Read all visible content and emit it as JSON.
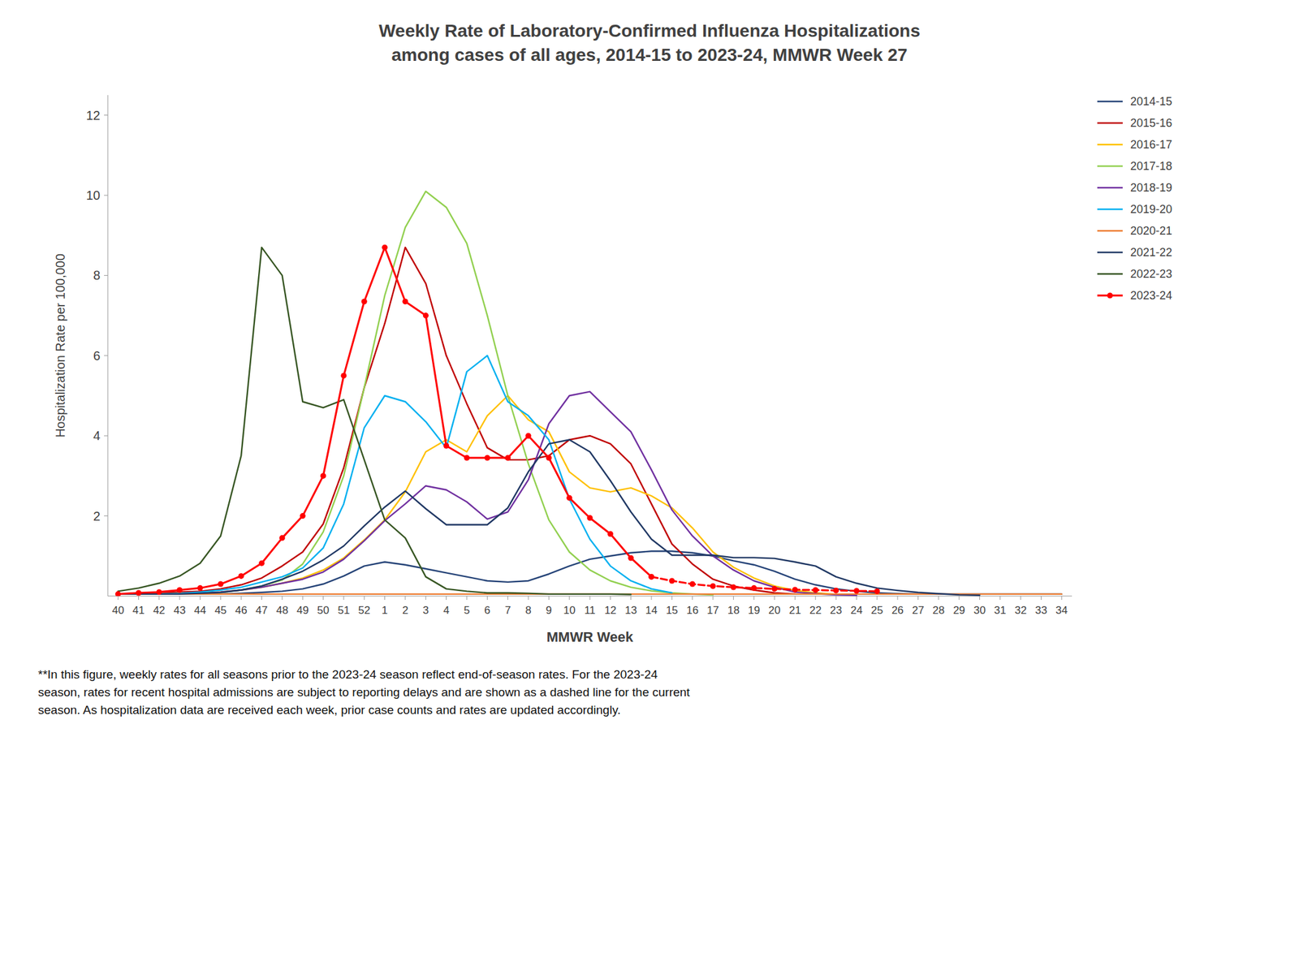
{
  "chart_data": {
    "type": "line",
    "title": "Weekly Rate of Laboratory-Confirmed Influenza Hospitalizations",
    "subtitle": "among cases of all ages, 2014-15 to 2023-24, MMWR Week 27",
    "xlabel": "MMWR Week",
    "ylabel": "Hospitalization Rate per 100,000",
    "annotations": [
      "**In this figure, weekly rates for all seasons prior to the 2023-24 season reflect end-of-season rates. For the 2023-24\nseason, rates for recent hospital admissions are subject to reporting delays and are shown as a dashed line for the current\nseason. As hospitalization data are received each week, prior case counts and rates are updated accordingly."
    ],
    "categories": [
      "40",
      "41",
      "42",
      "43",
      "44",
      "45",
      "46",
      "47",
      "48",
      "49",
      "50",
      "51",
      "52",
      "1",
      "2",
      "3",
      "4",
      "5",
      "6",
      "7",
      "8",
      "9",
      "10",
      "11",
      "12",
      "13",
      "14",
      "15",
      "16",
      "17",
      "18",
      "19",
      "20",
      "21",
      "22",
      "23",
      "24",
      "25",
      "26",
      "27",
      "28",
      "29",
      "30",
      "31",
      "32",
      "33",
      "34"
    ],
    "ylim": [
      0,
      12.5
    ],
    "yticks": [
      2,
      4,
      6,
      8,
      10,
      12
    ],
    "grid": false,
    "legend": "right",
    "series": [
      {
        "name": "2014-15",
        "color": "#264478",
        "values": [
          0.05,
          0.05,
          0.05,
          0.05,
          0.05,
          0.05,
          0.07,
          0.09,
          0.12,
          0.18,
          0.3,
          0.5,
          0.75,
          0.85,
          0.78,
          0.68,
          0.58,
          0.48,
          0.38,
          0.35,
          0.38,
          0.55,
          0.75,
          0.92,
          1.0,
          1.08,
          1.12,
          1.12,
          1.08,
          1.0,
          0.88,
          0.78,
          0.62,
          0.42,
          0.28,
          0.18,
          0.12,
          0.08,
          0.06,
          0.05,
          0.05,
          0.05,
          0.05,
          0.05,
          0.05,
          0.05,
          0.05
        ]
      },
      {
        "name": "2015-16",
        "color": "#c00000",
        "values": [
          0.05,
          0.05,
          0.08,
          0.1,
          0.12,
          0.18,
          0.28,
          0.45,
          0.75,
          1.1,
          1.8,
          3.2,
          5.2,
          6.8,
          8.7,
          7.8,
          6.0,
          4.8,
          3.7,
          3.4,
          3.4,
          3.5,
          3.9,
          4.0,
          3.8,
          3.3,
          2.3,
          1.3,
          0.8,
          0.42,
          0.25,
          0.15,
          0.08,
          0.05,
          null,
          null,
          null,
          null,
          null,
          null,
          null,
          null,
          null,
          null,
          null,
          null,
          null
        ]
      },
      {
        "name": "2016-17",
        "color": "#ffc000",
        "values": [
          0.05,
          0.05,
          0.05,
          0.07,
          0.08,
          0.1,
          0.15,
          0.22,
          0.32,
          0.45,
          0.65,
          0.95,
          1.4,
          1.9,
          2.6,
          3.6,
          3.9,
          3.6,
          4.5,
          5.0,
          4.4,
          4.1,
          3.1,
          2.7,
          2.6,
          2.7,
          2.5,
          2.2,
          1.7,
          1.1,
          0.72,
          0.45,
          0.25,
          0.14,
          0.08,
          0.04,
          null,
          null,
          null,
          null,
          null,
          null,
          null,
          null,
          null,
          null,
          null
        ]
      },
      {
        "name": "2017-18",
        "color": "#92d050",
        "values": [
          0.05,
          0.05,
          0.05,
          0.05,
          0.07,
          0.09,
          0.15,
          0.25,
          0.4,
          0.8,
          1.6,
          3.0,
          5.2,
          7.5,
          9.2,
          10.1,
          9.7,
          8.8,
          7.0,
          5.0,
          3.3,
          1.9,
          1.1,
          0.65,
          0.38,
          0.22,
          0.13,
          0.08,
          0.05,
          0.03,
          null,
          null,
          null,
          null,
          null,
          null,
          null,
          null,
          null,
          null,
          null,
          null,
          null,
          null,
          null,
          null,
          null
        ]
      },
      {
        "name": "2018-19",
        "color": "#7030a0",
        "values": [
          0.05,
          0.05,
          0.05,
          0.05,
          0.07,
          0.1,
          0.15,
          0.22,
          0.32,
          0.42,
          0.6,
          0.92,
          1.38,
          1.88,
          2.3,
          2.75,
          2.65,
          2.35,
          1.92,
          2.1,
          2.9,
          4.3,
          5.0,
          5.1,
          4.6,
          4.1,
          3.15,
          2.15,
          1.5,
          1.0,
          0.65,
          0.38,
          0.22,
          0.1,
          0.06,
          0.03,
          0.02,
          null,
          null,
          null,
          null,
          null,
          null,
          null,
          null,
          null,
          null
        ]
      },
      {
        "name": "2019-20",
        "color": "#00b0f0",
        "values": [
          0.05,
          0.05,
          0.05,
          0.07,
          0.1,
          0.15,
          0.22,
          0.35,
          0.48,
          0.7,
          1.2,
          2.3,
          4.2,
          5.0,
          4.85,
          4.35,
          3.7,
          5.6,
          6.0,
          4.85,
          4.5,
          3.9,
          2.42,
          1.42,
          0.75,
          0.38,
          0.18,
          0.08,
          null,
          null,
          null,
          null,
          null,
          null,
          null,
          null,
          null,
          null,
          null,
          null,
          null,
          null,
          null,
          null,
          null,
          null,
          null
        ]
      },
      {
        "name": "2020-21",
        "color": "#ed7d31",
        "values": [
          0.05,
          0.05,
          0.05,
          0.05,
          0.05,
          0.05,
          0.05,
          0.05,
          0.05,
          0.05,
          0.05,
          0.05,
          0.05,
          0.05,
          0.05,
          0.05,
          0.05,
          0.05,
          0.05,
          0.05,
          0.05,
          0.05,
          0.05,
          0.05,
          0.05,
          0.05,
          0.05,
          0.05,
          0.05,
          0.05,
          0.05,
          0.05,
          0.05,
          0.05,
          0.05,
          0.05,
          0.05,
          0.05,
          0.05,
          0.05,
          0.05,
          0.05,
          0.05,
          0.05,
          0.05,
          0.05,
          0.05
        ]
      },
      {
        "name": "2021-22",
        "color": "#203864",
        "values": [
          0.05,
          0.05,
          0.05,
          0.05,
          0.07,
          0.09,
          0.15,
          0.25,
          0.42,
          0.62,
          0.9,
          1.25,
          1.75,
          2.22,
          2.62,
          2.18,
          1.78,
          1.78,
          1.78,
          2.2,
          3.1,
          3.8,
          3.9,
          3.6,
          2.88,
          2.1,
          1.42,
          1.02,
          1.02,
          1.02,
          0.96,
          0.96,
          0.94,
          0.85,
          0.75,
          0.48,
          0.32,
          0.2,
          0.14,
          0.09,
          0.06,
          0.03,
          0.02,
          null,
          null,
          null,
          null
        ]
      },
      {
        "name": "2022-23",
        "color": "#375623",
        "values": [
          0.12,
          0.2,
          0.32,
          0.5,
          0.82,
          1.5,
          3.5,
          8.7,
          8.0,
          4.85,
          4.7,
          4.9,
          3.4,
          1.9,
          1.45,
          0.48,
          0.18,
          0.12,
          0.08,
          0.08,
          0.07,
          0.05,
          0.05,
          0.05,
          0.05,
          0.04,
          null,
          null,
          null,
          null,
          null,
          null,
          null,
          null,
          null,
          null,
          null,
          null,
          null,
          null,
          null,
          null,
          null,
          null,
          null,
          null,
          null
        ]
      },
      {
        "name": "2023-24",
        "color": "#ff0000",
        "marker": "circle",
        "line_style": "solid",
        "values": [
          0.05,
          0.08,
          0.1,
          0.15,
          0.2,
          0.3,
          0.5,
          0.82,
          1.45,
          2.0,
          3.0,
          5.5,
          7.35,
          8.7,
          7.35,
          7.0,
          3.75,
          3.45,
          3.45,
          3.45,
          4.0,
          3.45,
          2.45,
          1.95,
          1.55,
          0.95,
          0.48,
          null,
          null,
          null,
          null,
          null,
          null,
          null,
          null,
          null,
          null,
          null,
          null,
          null,
          null,
          null,
          null,
          null,
          null,
          null,
          null
        ]
      },
      {
        "name": "2023-24",
        "color": "#ff0000",
        "marker": "circle",
        "line_style": "dashed",
        "values": [
          null,
          null,
          null,
          null,
          null,
          null,
          null,
          null,
          null,
          null,
          null,
          null,
          null,
          null,
          null,
          null,
          null,
          null,
          null,
          null,
          null,
          null,
          null,
          null,
          null,
          null,
          0.48,
          0.38,
          0.3,
          0.25,
          0.22,
          0.2,
          0.18,
          0.16,
          0.15,
          0.14,
          0.13,
          0.12,
          null,
          null,
          null,
          null,
          null,
          null,
          null,
          null,
          null
        ]
      }
    ]
  }
}
